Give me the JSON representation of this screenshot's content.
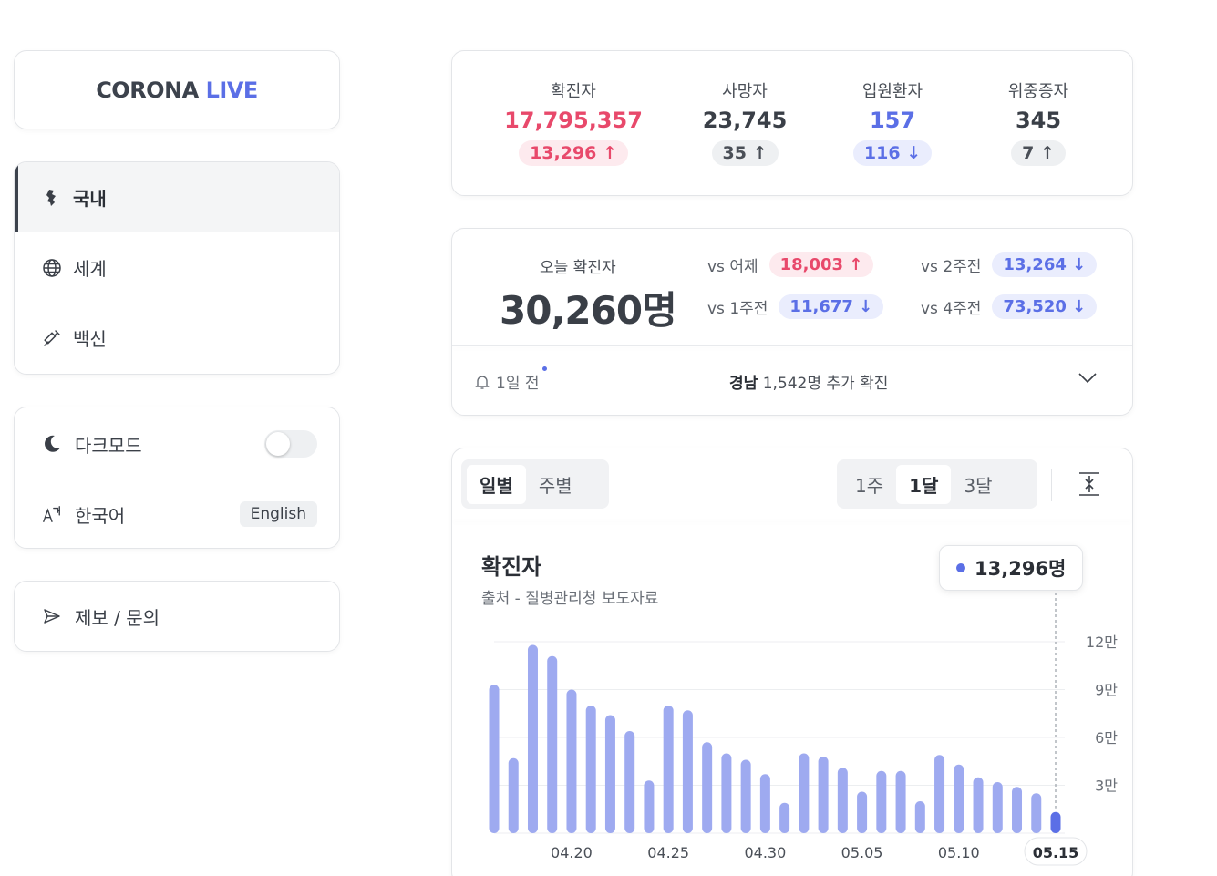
{
  "sidebar": {
    "logo": {
      "part1": "CORONA",
      "part2": "LIVE"
    },
    "nav": [
      {
        "label": "국내",
        "icon": "korea-map-icon"
      },
      {
        "label": "세계",
        "icon": "globe-icon"
      },
      {
        "label": "백신",
        "icon": "syringe-icon"
      }
    ],
    "darkmode_label": "다크모드",
    "darkmode_on": false,
    "language_label": "한국어",
    "language_button": "English",
    "report_label": "제보 / 문의"
  },
  "stats": [
    {
      "label": "확진자",
      "value": "17,795,357",
      "delta": "13,296",
      "direction": "up",
      "tone": "red"
    },
    {
      "label": "사망자",
      "value": "23,745",
      "delta": "35",
      "direction": "up",
      "tone": "gray"
    },
    {
      "label": "입원환자",
      "value": "157",
      "delta": "116",
      "direction": "down",
      "tone": "blue"
    },
    {
      "label": "위중증자",
      "value": "345",
      "delta": "7",
      "direction": "up",
      "tone": "gray"
    }
  ],
  "today": {
    "label": "오늘 확진자",
    "value": "30,260명",
    "comparisons": [
      {
        "label": "vs 어제",
        "value": "18,003",
        "direction": "up"
      },
      {
        "label": "vs 2주전",
        "value": "13,264",
        "direction": "down"
      },
      {
        "label": "vs 1주전",
        "value": "11,677",
        "direction": "down"
      },
      {
        "label": "vs 4주전",
        "value": "73,520",
        "direction": "down"
      }
    ],
    "notice": {
      "time": "1일 전",
      "region": "경남",
      "text": "1,542명 추가 확진"
    }
  },
  "chart_controls": {
    "mode_tabs": [
      "일별",
      "주별"
    ],
    "mode_active": 0,
    "range_tabs": [
      "1주",
      "1달",
      "3달"
    ],
    "range_active": 1
  },
  "chart_data": {
    "type": "bar",
    "title": "확진자",
    "subtitle": "출처 - 질병관리청 보도자료",
    "tooltip": "13,296명",
    "y_ticks": [
      "3만",
      "6만",
      "9만",
      "12만"
    ],
    "x_ticks": [
      "04.20",
      "04.25",
      "04.30",
      "05.05",
      "05.10",
      "05.15"
    ],
    "ylim": [
      0,
      120000
    ],
    "grid": true,
    "categories": [
      "04.16",
      "04.17",
      "04.18",
      "04.19",
      "04.20",
      "04.21",
      "04.22",
      "04.23",
      "04.24",
      "04.25",
      "04.26",
      "04.27",
      "04.28",
      "04.29",
      "04.30",
      "05.01",
      "05.02",
      "05.03",
      "05.04",
      "05.05",
      "05.06",
      "05.07",
      "05.08",
      "05.09",
      "05.10",
      "05.11",
      "05.12",
      "05.13",
      "05.14",
      "05.15"
    ],
    "values": [
      93000,
      47000,
      118000,
      111000,
      90000,
      80000,
      74000,
      64000,
      33000,
      80000,
      77000,
      57000,
      50000,
      46000,
      37000,
      19000,
      50000,
      48000,
      41000,
      26000,
      39000,
      39000,
      20000,
      49000,
      43000,
      35000,
      32000,
      29000,
      25000,
      13296
    ],
    "highlight_index": 29,
    "colors": {
      "bar": "#9eaaf0",
      "highlight": "#5b6fe6"
    }
  }
}
